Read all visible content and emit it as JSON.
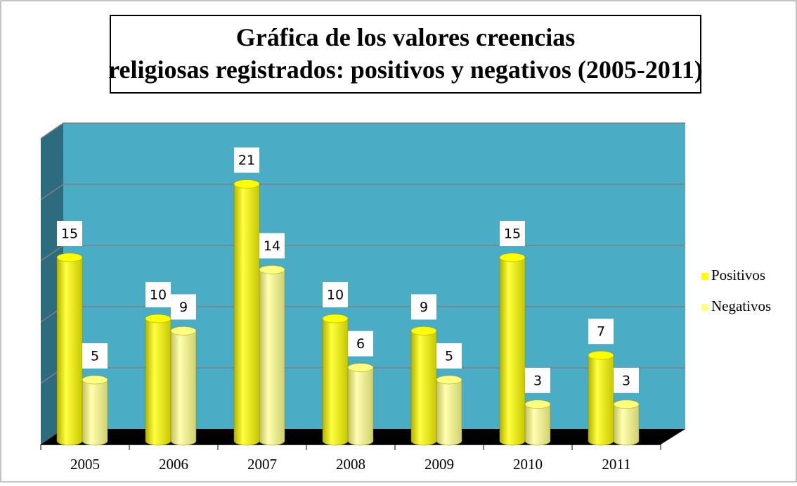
{
  "chart_data": {
    "type": "bar",
    "title": "Gráfica de los valores creencias religiosas registrados: positivos y negativos (2005-2011)",
    "categories": [
      "2005",
      "2006",
      "2007",
      "2008",
      "2009",
      "2010",
      "2011"
    ],
    "series": [
      {
        "name": "Positivos",
        "color": "#ffff00",
        "values": [
          15,
          10,
          21,
          10,
          9,
          15,
          7
        ]
      },
      {
        "name": "Negativos",
        "color": "#ffff80",
        "values": [
          5,
          9,
          14,
          6,
          5,
          3,
          3
        ]
      }
    ],
    "ylim": [
      0,
      25
    ],
    "yticks": [
      0,
      5,
      10,
      15,
      20,
      25
    ],
    "grid": true,
    "legend": "right"
  }
}
